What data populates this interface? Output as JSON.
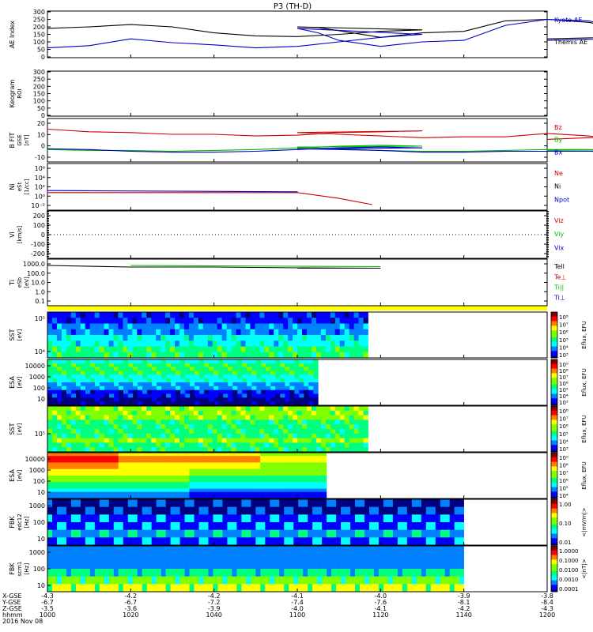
{
  "title": "P3 (TH-D)",
  "colors": {
    "black": "#000000",
    "blue": "#0000cc",
    "red": "#cc0000",
    "green": "#00bb00",
    "yellow": "#ffff00",
    "bar_colors": [
      "#ffffff",
      "#000080",
      "#0000ff",
      "#0080ff",
      "#00ffff",
      "#00ff80",
      "#80ff00",
      "#ffff00",
      "#ff8000",
      "#ff0000",
      "#800000"
    ]
  },
  "chart_data": [
    {
      "type": "line",
      "name": "ae",
      "ylabel": "AE Index",
      "ylim": [
        0,
        300
      ],
      "yticks": [
        "300",
        "250",
        "200",
        "150",
        "100",
        "50",
        "0"
      ],
      "legend": [
        "Kyoto AE",
        "Themis AE"
      ],
      "x": [
        1000,
        1010,
        1020,
        1030,
        1040,
        1050,
        1060,
        1070,
        1080,
        1090,
        1100,
        1105,
        1110,
        1120,
        1130,
        1140,
        1150,
        1160,
        1170,
        1180,
        1190,
        1200
      ],
      "series": [
        {
          "name": "Kyoto AE",
          "color": "#000000",
          "values": [
            190,
            200,
            215,
            200,
            160,
            140,
            135,
            150,
            170,
            180,
            200,
            195,
            175,
            130,
            160,
            170,
            240,
            250,
            230,
            180,
            140,
            120
          ]
        },
        {
          "name": "Themis AE",
          "color": "#0000cc",
          "values": [
            60,
            75,
            120,
            95,
            80,
            60,
            70,
            100,
            130,
            150,
            190,
            160,
            110,
            70,
            100,
            110,
            210,
            250,
            240,
            170,
            130,
            110
          ]
        }
      ]
    },
    {
      "type": "line",
      "name": "keogram",
      "ylabel": "Keogram",
      "ylabel2": "ROI",
      "ylim": [
        0,
        300
      ],
      "yticks": [
        "300",
        "250",
        "200",
        "150",
        "100",
        "50",
        "0"
      ],
      "x": [],
      "series": []
    },
    {
      "type": "line",
      "name": "bfield",
      "ylabel": "B FIT",
      "ylabel2": "GSE",
      "unit": "[nT]",
      "ylim": [
        -10,
        30
      ],
      "yticks": [
        "20",
        "10",
        "0",
        "-10"
      ],
      "legend": [
        "Bz",
        "By",
        "Bx"
      ],
      "x": [
        1000,
        1010,
        1020,
        1030,
        1040,
        1050,
        1060,
        1070,
        1080,
        1090,
        1100,
        1110,
        1120,
        1130,
        1140,
        1150,
        1160,
        1170,
        1180,
        1190,
        1200
      ],
      "series": [
        {
          "name": "Bz",
          "color": "#cc0000",
          "values": [
            23,
            20,
            19,
            17,
            17,
            15,
            16,
            19,
            20,
            21,
            19,
            17,
            15,
            13,
            14,
            14,
            18,
            15,
            10,
            17,
            11
          ]
        },
        {
          "name": "By",
          "color": "#00bb00",
          "values": [
            -1,
            -2,
            -2,
            -3,
            -2,
            -1,
            1,
            3,
            4,
            3,
            2,
            0,
            -2,
            -3,
            -3,
            -2,
            -1,
            -1,
            -2,
            -1,
            -2
          ]
        },
        {
          "name": "Bx",
          "color": "#0000cc",
          "values": [
            0,
            -1,
            -3,
            -4,
            -4,
            -3,
            -1,
            1,
            2,
            1,
            0,
            -1,
            -2,
            -4,
            -4,
            -3,
            -3,
            -3,
            -4,
            -3,
            -3
          ]
        }
      ]
    },
    {
      "type": "line",
      "name": "density",
      "ylabel": "Ni",
      "ylabel2": "eSt",
      "unit": "[1/cc]",
      "ylim": [
        -3,
        6
      ],
      "yticks": [
        "10⁶",
        "10⁴",
        "10²",
        "10⁰",
        "10⁻²"
      ],
      "legend": [
        "Ne",
        "Ni",
        "Npot"
      ],
      "x": [
        1000,
        1060,
        1100,
        1110,
        1118
      ],
      "series": [
        {
          "name": "Ne",
          "color": "#cc0000",
          "values": [
            0.1,
            0.1,
            0.1,
            -1.3,
            -2.8
          ]
        },
        {
          "name": "Npot",
          "color": "#0000cc",
          "values": [
            0.6,
            0.3,
            0.2,
            null,
            null
          ]
        }
      ]
    },
    {
      "type": "line",
      "name": "velocity",
      "ylabel": "Vi",
      "unit": "[km/s]",
      "ylim": [
        -250,
        250
      ],
      "yticks": [
        "200",
        "100",
        "0",
        "-100",
        "-200"
      ],
      "legend": [
        "Viz",
        "Viy",
        "Vix"
      ],
      "x": [],
      "series": []
    },
    {
      "type": "line",
      "name": "temperature",
      "ylabel": "Ti",
      "ylabel2": "eSb",
      "unit": "[eV]",
      "ylim": [
        -1.3,
        3.4
      ],
      "yticks": [
        "1000.0",
        "100.0",
        "10.0",
        "1.0",
        "0.1"
      ],
      "legend": [
        "Tell",
        "Te⊥",
        "Ti||",
        "Ti⊥"
      ],
      "x": [
        1000,
        1020,
        1040,
        1060,
        1080,
        1100
      ],
      "series": [
        {
          "name": "Tell",
          "color": "#000000",
          "values": [
            3.2,
            3.0,
            3.0,
            2.9,
            2.85,
            2.85
          ]
        },
        {
          "name": "Ti||",
          "color": "#00bb00",
          "values": [
            null,
            3.2,
            3.15,
            3.1,
            3.05,
            null
          ]
        }
      ]
    },
    {
      "type": "heatmap",
      "name": "sst_ion",
      "ylabel": "SST",
      "unit": "[eV]",
      "yticks": [
        "10⁵",
        "10⁴"
      ],
      "cbar_label": "Eflux, EFU",
      "cbar_ticks": [
        "10⁸",
        "10⁷",
        "10⁶",
        "10⁵",
        "10⁴",
        "10³"
      ],
      "x_end": 1117,
      "rows": 8,
      "base": [
        2,
        2,
        3,
        3,
        4,
        4,
        5,
        5
      ]
    },
    {
      "type": "heatmap",
      "name": "esa_ion",
      "ylabel": "ESA",
      "unit": "[eV]",
      "yticks": [
        "10000",
        "1000",
        "100",
        "10"
      ],
      "cbar_label": "Eflux, EFU",
      "cbar_ticks": [
        "10⁹",
        "10⁸",
        "10⁷",
        "10⁶",
        "10⁵",
        "10⁴",
        "10³"
      ],
      "x_end": 1105,
      "rows": 12,
      "base": [
        4,
        5,
        5,
        5,
        4,
        4,
        3,
        3,
        2,
        2,
        1,
        1
      ]
    },
    {
      "type": "heatmap",
      "name": "sst_elec",
      "ylabel": "SST",
      "unit": "[eV]",
      "yticks": [
        "10⁵"
      ],
      "cbar_label": "Eflux, EFU",
      "cbar_ticks": [
        "10⁸",
        "10⁷",
        "10⁶",
        "10⁵",
        "10⁴",
        "10³"
      ],
      "x_end": 1117,
      "rows": 10,
      "base": [
        6,
        6,
        6,
        5,
        5,
        5,
        5,
        6,
        5,
        5
      ]
    },
    {
      "type": "heatmap",
      "name": "esa_elec",
      "ylabel": "ESA",
      "unit": "[eV]",
      "yticks": [
        "10000",
        "1000",
        "100",
        "10"
      ],
      "cbar_label": "Eflux, EFU",
      "cbar_ticks": [
        "10⁹",
        "10⁸",
        "10⁷",
        "10⁶",
        "10⁵",
        "10⁴"
      ],
      "x_end": 1107,
      "rows": 14,
      "base": [
        8,
        9,
        9,
        8,
        8,
        7,
        7,
        6,
        6,
        5,
        5,
        4,
        3,
        3
      ]
    },
    {
      "type": "heatmap",
      "name": "fbk_edc",
      "ylabel": "FBK",
      "ylabel2": "edc12",
      "unit": "[Hz]",
      "yticks": [
        "1000",
        "100",
        "10"
      ],
      "cbar_label": "<|mV/m|>",
      "cbar_ticks": [
        "1.00",
        "0.10",
        "0.01"
      ],
      "x_end": 1140,
      "rows": 6,
      "base": [
        1,
        1,
        2,
        2,
        3,
        2
      ]
    },
    {
      "type": "heatmap",
      "name": "fbk_scm",
      "ylabel": "FBK",
      "ylabel2": "scm1",
      "unit": "[Hz]",
      "yticks": [
        "1000",
        "100",
        "10"
      ],
      "cbar_label": "<|nT|>",
      "cbar_ticks": [
        "1.0000",
        "0.1000",
        "0.0100",
        "0.0010",
        "0.0001"
      ],
      "x_end": 1140,
      "rows": 6,
      "base": [
        3,
        3,
        3,
        5,
        6,
        7
      ]
    }
  ],
  "xaxis": {
    "labels": [
      "X-GSE",
      "Y-GSE",
      "Z-GSE",
      "hhmm",
      "2016 Nov 08"
    ],
    "ticks": [
      {
        "t": 1000,
        "rows": [
          "-4.3",
          "-6.7",
          "-3.5",
          "1000"
        ]
      },
      {
        "t": 1020,
        "rows": [
          "-4.2",
          "-6.7",
          "-3.6",
          "1020"
        ]
      },
      {
        "t": 1040,
        "rows": [
          "-4.2",
          "-7.2",
          "-3.9",
          "1040"
        ]
      },
      {
        "t": 1100,
        "rows": [
          "-4.1",
          "-7.4",
          "-4.0",
          "1100"
        ]
      },
      {
        "t": 1120,
        "rows": [
          "-4.0",
          "-7.6",
          "-4.1",
          "1120"
        ]
      },
      {
        "t": 1140,
        "rows": [
          "-3.9",
          "-8.1",
          "-4.2",
          "1140"
        ]
      },
      {
        "t": 1200,
        "rows": [
          "-3.8",
          "-8.4",
          "-4.3",
          "1200"
        ]
      }
    ]
  }
}
